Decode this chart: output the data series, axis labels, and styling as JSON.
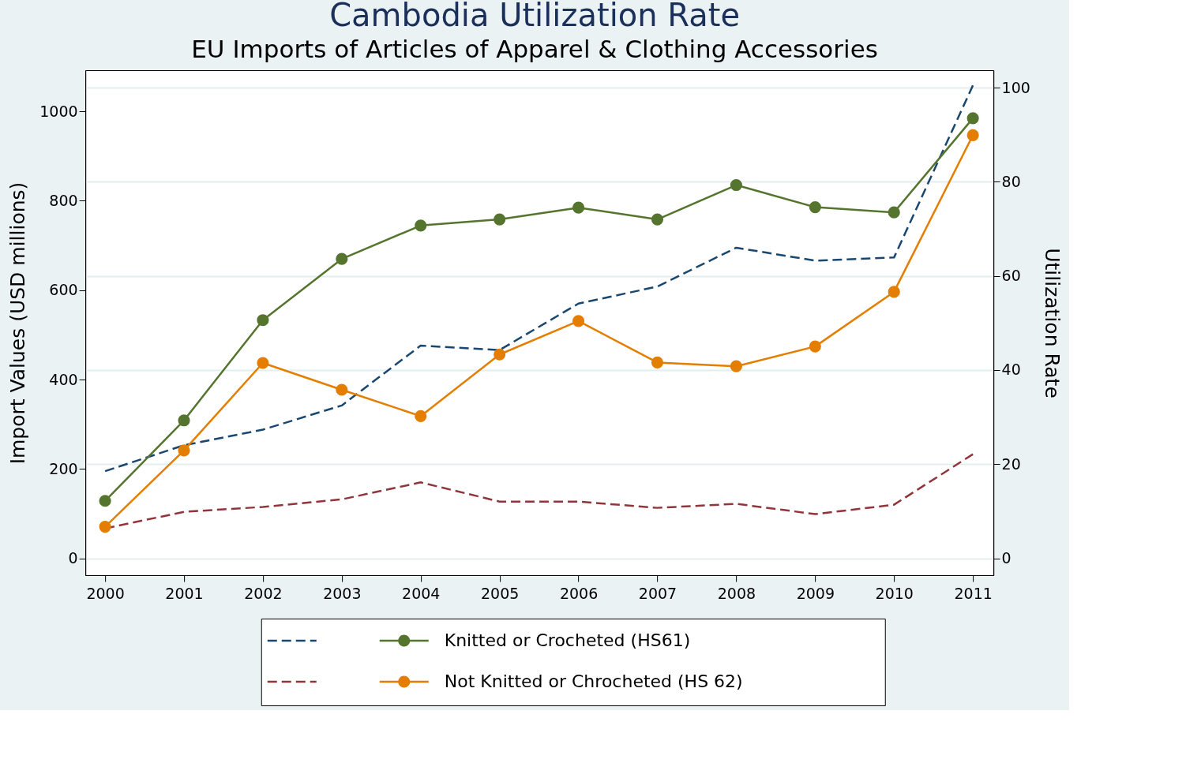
{
  "chart_data": {
    "type": "line",
    "title": "Cambodia Utilization Rate",
    "subtitle": "EU Imports of Articles of Apparel & Clothing Accessories",
    "ylabel": "Import Values (USD millions)",
    "y2label": "Utilization Rate",
    "x": [
      2000,
      2001,
      2002,
      2003,
      2004,
      2005,
      2006,
      2007,
      2008,
      2009,
      2010,
      2011
    ],
    "xlim": [
      1999.75,
      2011.26
    ],
    "xticks": [
      2000,
      2001,
      2002,
      2003,
      2004,
      2005,
      2006,
      2007,
      2008,
      2009,
      2010,
      2011
    ],
    "ylim": [
      -37.7,
      1092
    ],
    "yticks": [
      0,
      200,
      400,
      600,
      800,
      1000
    ],
    "y2lim": [
      -3.6,
      103.7
    ],
    "y2ticks": [
      0,
      20,
      40,
      60,
      80,
      100
    ],
    "grid": "y",
    "legend": "bottom",
    "series": [
      {
        "color": "#1a476f",
        "line_style": "dashed",
        "marker": "none",
        "values": [
          195,
          253,
          288,
          342,
          476,
          466,
          570,
          608,
          695,
          666,
          673,
          1058
        ]
      },
      {
        "color": "#90353b",
        "line_style": "dashed",
        "marker": "none",
        "values": [
          67,
          104,
          115,
          132,
          170,
          127,
          127,
          113,
          122,
          99,
          120,
          233
        ]
      },
      {
        "name": "Knitted or Crocheted (HS61)",
        "color": "#55752f",
        "line_style": "solid",
        "marker": "circle",
        "axis": "y2",
        "values": [
          12.2,
          29.3,
          50.6,
          63.6,
          70.7,
          72.0,
          74.5,
          72.0,
          79.3,
          74.6,
          73.5,
          93.5
        ]
      },
      {
        "name": "Not Knitted or Chrocheted (HS 62)",
        "color": "#e37e00",
        "line_style": "solid",
        "marker": "circle",
        "axis": "y2",
        "values": [
          6.7,
          22.9,
          41.5,
          35.8,
          30.2,
          43.3,
          50.4,
          41.6,
          40.8,
          45.0,
          56.6,
          89.9
        ]
      }
    ]
  }
}
